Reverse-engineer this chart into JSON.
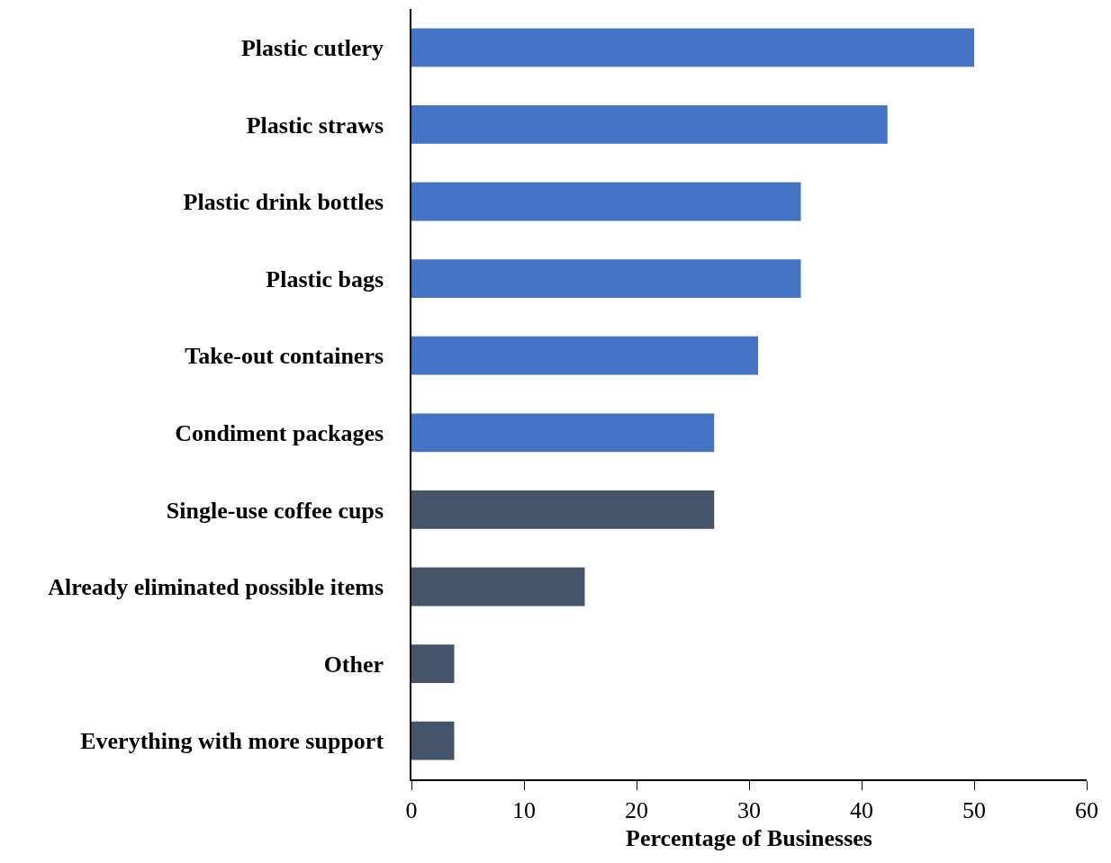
{
  "chart_data": {
    "type": "bar",
    "orientation": "horizontal",
    "xlabel": "Percentage of Businesses",
    "categories": [
      "Plastic cutlery",
      "Plastic straws",
      "Plastic drink bottles",
      "Plastic bags",
      "Take-out containers",
      "Condiment packages",
      "Single-use coffee cups",
      "Already eliminated possible items",
      "Other",
      "Everything with more support"
    ],
    "values": [
      50.0,
      42.3,
      34.6,
      34.6,
      30.8,
      26.9,
      26.9,
      15.4,
      3.8,
      3.8
    ],
    "colors": [
      "#4472c4",
      "#4472c4",
      "#4472c4",
      "#4472c4",
      "#4472c4",
      "#4472c4",
      "#44546a",
      "#44546a",
      "#44546a",
      "#44546a"
    ],
    "xlim": [
      0,
      60
    ],
    "xticks": [
      0,
      10,
      20,
      30,
      40,
      50,
      60
    ],
    "grid": false
  }
}
